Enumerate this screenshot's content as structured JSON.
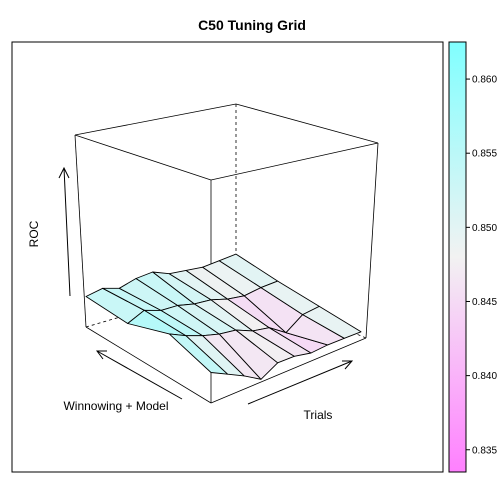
{
  "chart_data": {
    "type": "surface",
    "title": "C50 Tuning Grid",
    "xlabel": "Trials",
    "ylabel": "Winnowing + Model",
    "zlabel": "ROC",
    "colorkey": {
      "ticks": [
        "0.835",
        "0.840",
        "0.845",
        "0.850",
        "0.855",
        "0.860"
      ],
      "tick_values": [
        0.835,
        0.84,
        0.845,
        0.85,
        0.855,
        0.86
      ],
      "range": [
        0.8335,
        0.8625
      ],
      "low_color": "#ff80ff",
      "mid_color": "#f2f2f2",
      "high_color": "#80ffff"
    },
    "surface": {
      "rows": 4,
      "cols": 10,
      "z": [
        [
          0.852,
          0.848,
          0.844,
          0.839,
          0.846,
          0.847,
          0.846,
          0.848,
          0.849,
          0.85
        ],
        [
          0.86,
          0.856,
          0.853,
          0.851,
          0.8505,
          0.847,
          0.846,
          0.84,
          0.848,
          0.85
        ],
        [
          0.851,
          0.856,
          0.853,
          0.853,
          0.851,
          0.8505,
          0.848,
          0.847,
          0.849,
          0.85
        ],
        [
          0.852,
          0.854,
          0.851,
          0.854,
          0.855,
          0.851,
          0.85,
          0.849,
          0.85,
          0.851
        ]
      ]
    }
  }
}
